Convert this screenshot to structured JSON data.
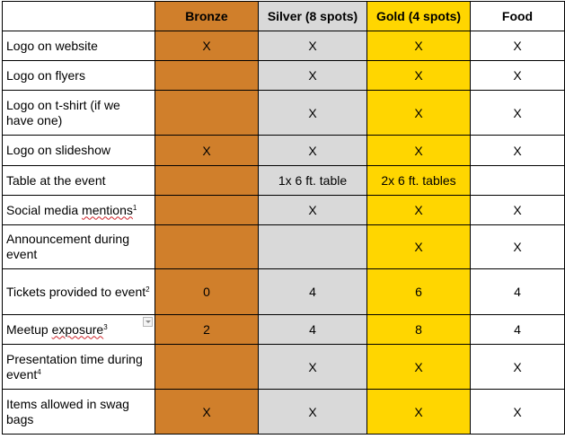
{
  "columns": [
    "",
    "Bronze",
    "Silver (8 spots)",
    "Gold (4 spots)",
    "Food"
  ],
  "colors": {
    "bronze": "#d07f2b",
    "silver": "#d9d9d9",
    "gold": "#ffd600",
    "food": "#ffffff"
  },
  "rows": [
    {
      "feature": "Logo on website",
      "bronze": "X",
      "silver": "X",
      "gold": "X",
      "food": "X"
    },
    {
      "feature": "Logo on flyers",
      "bronze": "",
      "silver": "X",
      "gold": "X",
      "food": "X"
    },
    {
      "feature": "Logo on t-shirt (if we have one)",
      "bronze": "",
      "silver": "X",
      "gold": "X",
      "food": "X"
    },
    {
      "feature": "Logo on slideshow",
      "bronze": "X",
      "silver": "X",
      "gold": "X",
      "food": "X"
    },
    {
      "feature": "Table at the event",
      "bronze": "",
      "silver": "1x 6 ft. table",
      "gold": "2x 6 ft. tables",
      "food": ""
    },
    {
      "feature": "Social media mentions",
      "footnote": "1",
      "bronze": "",
      "silver": "X",
      "gold": "X",
      "food": "X"
    },
    {
      "feature": "Announcement during event",
      "bronze": "",
      "silver": "",
      "gold": "X",
      "food": "X"
    },
    {
      "feature": "Tickets provided to event",
      "footnote": "2",
      "bronze": "0",
      "silver": "4",
      "gold": "6",
      "food": "4"
    },
    {
      "feature": "Meetup exposure",
      "footnote": "3",
      "bronze": "2",
      "silver": "4",
      "gold": "8",
      "food": "4"
    },
    {
      "feature": "Presentation time during event",
      "footnote": "4",
      "bronze": "",
      "silver": "X",
      "gold": "X",
      "food": "X"
    },
    {
      "feature": "Items allowed in swag bags",
      "bronze": "X",
      "silver": "X",
      "gold": "X",
      "food": "X"
    }
  ],
  "icons": {
    "row_menu": "dropdown-arrow-icon"
  }
}
